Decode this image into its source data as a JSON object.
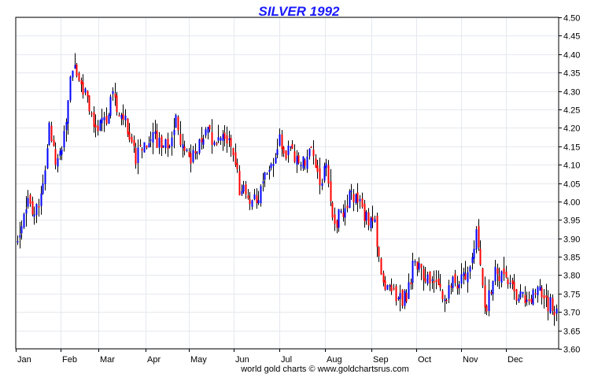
{
  "chart_data": {
    "type": "ohlc",
    "title": "SILVER 1992",
    "footer": "world gold charts © www.goldchartsrus.com",
    "ylim": [
      3.6,
      4.5
    ],
    "y_ticks": [
      "3.60",
      "3.65",
      "3.70",
      "3.75",
      "3.80",
      "3.85",
      "3.90",
      "3.95",
      "4.00",
      "4.05",
      "4.10",
      "4.15",
      "4.20",
      "4.25",
      "4.30",
      "4.35",
      "4.40",
      "4.45",
      "4.50"
    ],
    "x_ticks": [
      "Jan",
      "Feb",
      "Mar",
      "Apr",
      "May",
      "Jun",
      "Jul",
      "Aug",
      "Sep",
      "Oct",
      "Nov",
      "Dec"
    ],
    "grid": true,
    "up_color": "#0000ff",
    "down_color": "#ff0000",
    "anchors": [
      [
        0,
        3.9
      ],
      [
        1,
        4.0
      ],
      [
        2,
        3.98
      ],
      [
        3,
        4.02
      ],
      [
        4,
        4.19
      ],
      [
        5,
        4.1
      ],
      [
        6,
        4.2
      ],
      [
        7,
        4.38
      ],
      [
        8,
        4.32
      ],
      [
        9,
        4.25
      ],
      [
        10,
        4.2
      ],
      [
        11,
        4.22
      ],
      [
        12,
        4.28
      ],
      [
        13,
        4.25
      ],
      [
        14,
        4.2
      ],
      [
        15,
        4.12
      ],
      [
        16,
        4.15
      ],
      [
        17,
        4.18
      ],
      [
        18,
        4.16
      ],
      [
        19,
        4.15
      ],
      [
        20,
        4.22
      ],
      [
        21,
        4.12
      ],
      [
        22,
        4.12
      ],
      [
        23,
        4.15
      ],
      [
        24,
        4.2
      ],
      [
        25,
        4.15
      ],
      [
        26,
        4.17
      ],
      [
        27,
        4.15
      ],
      [
        28,
        4.04
      ],
      [
        29,
        4.02
      ],
      [
        30,
        4.0
      ],
      [
        31,
        4.05
      ],
      [
        32,
        4.1
      ],
      [
        33,
        4.16
      ],
      [
        34,
        4.13
      ],
      [
        35,
        4.12
      ],
      [
        36,
        4.1
      ],
      [
        37,
        4.16
      ],
      [
        38,
        4.05
      ],
      [
        39,
        4.1
      ],
      [
        40,
        3.93
      ],
      [
        41,
        3.98
      ],
      [
        42,
        4.02
      ],
      [
        43,
        4.0
      ],
      [
        44,
        3.96
      ],
      [
        45,
        3.95
      ],
      [
        46,
        3.78
      ],
      [
        47,
        3.75
      ],
      [
        48,
        3.73
      ],
      [
        49,
        3.74
      ],
      [
        50,
        3.84
      ],
      [
        51,
        3.82
      ],
      [
        52,
        3.77
      ],
      [
        53,
        3.76
      ],
      [
        54,
        3.74
      ],
      [
        55,
        3.78
      ],
      [
        56,
        3.79
      ],
      [
        57,
        3.82
      ],
      [
        58,
        3.92
      ],
      [
        59,
        3.7
      ],
      [
        60,
        3.8
      ],
      [
        61,
        3.8
      ],
      [
        62,
        3.8
      ],
      [
        63,
        3.75
      ],
      [
        64,
        3.74
      ],
      [
        65,
        3.75
      ],
      [
        66,
        3.76
      ],
      [
        67,
        3.72
      ],
      [
        68,
        3.7
      ]
    ]
  }
}
